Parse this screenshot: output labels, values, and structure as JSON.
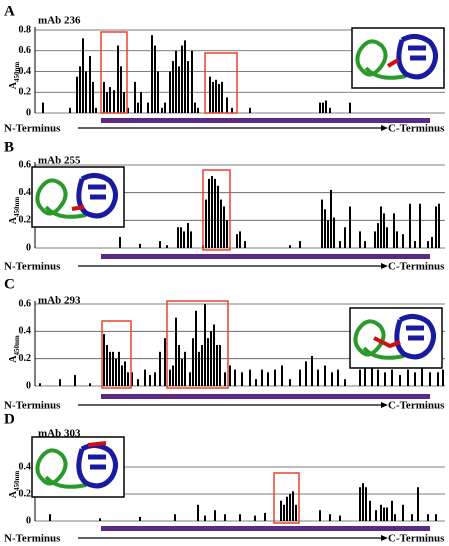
{
  "chart_data": [
    {
      "type": "bar",
      "panel": "A",
      "title": "mAb 236",
      "ylabel": "A",
      "ylabel_sub": "450nm",
      "n_label": "N-Terminus",
      "c_label": "C-Terminus",
      "color": "#000000",
      "x": [
        43,
        70,
        77,
        80,
        83,
        86,
        90,
        93,
        96,
        104,
        107,
        110,
        114,
        118,
        121,
        124,
        128,
        135,
        138,
        141,
        148,
        152,
        155,
        158,
        162,
        165,
        170,
        173,
        176,
        179,
        182,
        185,
        188,
        192,
        195,
        198,
        210,
        213,
        216,
        219,
        222,
        227,
        232,
        250,
        320,
        323,
        326,
        330,
        350
      ],
      "values": [
        0.1,
        0.05,
        0.35,
        0.45,
        0.72,
        0.4,
        0.55,
        0.3,
        0.05,
        0.3,
        0.2,
        0.25,
        0.22,
        0.65,
        0.45,
        0.2,
        0.05,
        0.3,
        0.1,
        0.2,
        0.1,
        0.75,
        0.65,
        0.4,
        0.05,
        0.1,
        0.4,
        0.5,
        0.6,
        0.45,
        0.65,
        0.7,
        0.5,
        0.6,
        0.1,
        0.05,
        0.35,
        0.3,
        0.32,
        0.28,
        0.3,
        0.15,
        0.05,
        0.05,
        0.1,
        0.1,
        0.12,
        0.05,
        0.1
      ],
      "xlim": [
        35,
        445
      ],
      "ylim": [
        0,
        0.8
      ],
      "yticks": [
        0,
        0.2,
        0.4,
        0.6,
        0.8
      ],
      "grid": true
    },
    {
      "type": "bar",
      "panel": "B",
      "title": "mAb 255",
      "ylabel": "A",
      "ylabel_sub": "450nm",
      "n_label": "N-Terminus",
      "c_label": "C-Terminus",
      "color": "#000000",
      "x": [
        120,
        140,
        160,
        167,
        178,
        181,
        184,
        188,
        191,
        203,
        206,
        209,
        212,
        215,
        218,
        221,
        224,
        227,
        237,
        240,
        245,
        290,
        300,
        322,
        325,
        328,
        331,
        334,
        340,
        345,
        350,
        360,
        365,
        375,
        378,
        381,
        384,
        387,
        394,
        397,
        403,
        410,
        415,
        420,
        428,
        432,
        436,
        439
      ],
      "values": [
        0.08,
        0.03,
        0.05,
        0.02,
        0.15,
        0.15,
        0.12,
        0.18,
        0.12,
        0.02,
        0.35,
        0.5,
        0.52,
        0.5,
        0.45,
        0.35,
        0.3,
        0.2,
        0.1,
        0.12,
        0.05,
        0.02,
        0.05,
        0.35,
        0.28,
        0.2,
        0.42,
        0.22,
        0.05,
        0.15,
        0.3,
        0.12,
        0.05,
        0.12,
        0.18,
        0.3,
        0.25,
        0.15,
        0.25,
        0.12,
        0.1,
        0.32,
        0.05,
        0.32,
        0.05,
        0.08,
        0.3,
        0.32
      ],
      "xlim": [
        35,
        445
      ],
      "ylim": [
        0,
        0.6
      ],
      "yticks": [
        0,
        0.2,
        0.4,
        0.6
      ],
      "grid": true
    },
    {
      "type": "bar",
      "panel": "C",
      "title": "mAb 293",
      "ylabel": "A",
      "ylabel_sub": "450nm",
      "n_label": "N-Terminus",
      "c_label": "C-Terminus",
      "color": "#000000",
      "x": [
        40,
        60,
        75,
        90,
        104,
        107,
        110,
        113,
        116,
        119,
        122,
        125,
        128,
        132,
        138,
        145,
        150,
        155,
        160,
        165,
        170,
        173,
        176,
        179,
        182,
        185,
        190,
        193,
        196,
        199,
        202,
        205,
        208,
        211,
        214,
        217,
        220,
        225,
        230,
        235,
        242,
        250,
        256,
        262,
        268,
        275,
        282,
        290,
        300,
        306,
        312,
        318,
        325,
        332,
        338,
        345,
        360,
        365,
        372,
        378,
        385,
        392,
        400,
        408,
        415,
        422,
        430,
        438,
        443
      ],
      "values": [
        0.02,
        0.05,
        0.08,
        0.02,
        0.38,
        0.3,
        0.25,
        0.25,
        0.2,
        0.25,
        0.15,
        0.18,
        0.1,
        0.1,
        0.05,
        0.12,
        0.08,
        0.1,
        0.25,
        0.35,
        0.12,
        0.15,
        0.5,
        0.3,
        0.2,
        0.25,
        0.1,
        0.35,
        0.55,
        0.25,
        0.3,
        0.6,
        0.35,
        0.4,
        0.45,
        0.3,
        0.3,
        0.1,
        0.15,
        0.12,
        0.1,
        0.12,
        0.05,
        0.12,
        0.1,
        0.12,
        0.15,
        0.05,
        0.12,
        0.18,
        0.22,
        0.12,
        0.15,
        0.1,
        0.12,
        0.05,
        0.12,
        0.2,
        0.15,
        0.12,
        0.1,
        0.12,
        0.08,
        0.12,
        0.1,
        0.15,
        0.1,
        0.1,
        0.12
      ],
      "xlim": [
        35,
        445
      ],
      "ylim": [
        0,
        0.6
      ],
      "yticks": [
        0,
        0.2,
        0.4,
        0.6
      ],
      "grid": true
    },
    {
      "type": "bar",
      "panel": "D",
      "title": "mAb 303",
      "ylabel": "A",
      "ylabel_sub": "450nm",
      "n_label": "N-Terminus",
      "c_label": "C-Terminus",
      "color": "#000000",
      "x": [
        50,
        100,
        140,
        175,
        198,
        205,
        215,
        225,
        240,
        255,
        265,
        281,
        284,
        287,
        290,
        293,
        296,
        320,
        330,
        340,
        360,
        363,
        366,
        370,
        376,
        381,
        384,
        387,
        392,
        395,
        403,
        412,
        418,
        428,
        436
      ],
      "values": [
        0.05,
        0.02,
        0.03,
        0.05,
        0.12,
        0.04,
        0.08,
        0.05,
        0.05,
        0.04,
        0.06,
        0.15,
        0.12,
        0.18,
        0.2,
        0.22,
        0.12,
        0.08,
        0.05,
        0.04,
        0.25,
        0.28,
        0.25,
        0.15,
        0.08,
        0.12,
        0.1,
        0.1,
        0.15,
        0.05,
        0.12,
        0.05,
        0.25,
        0.05,
        0.05
      ],
      "xlim": [
        35,
        445
      ],
      "ylim": [
        0,
        0.6
      ],
      "yticks": [
        0,
        0.2,
        0.4
      ],
      "grid": true
    }
  ]
}
